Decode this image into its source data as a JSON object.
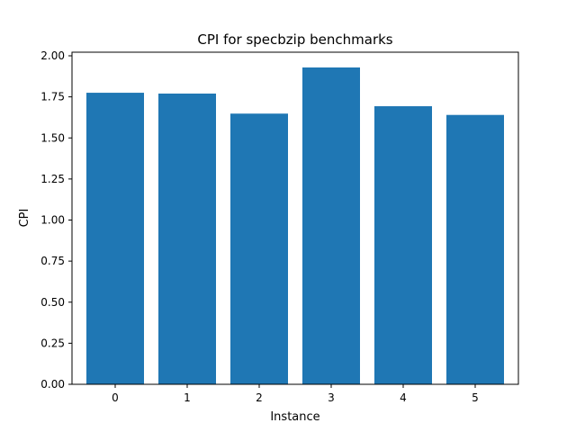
{
  "chart_data": {
    "type": "bar",
    "title": "CPI for specbzip benchmarks",
    "xlabel": "Instance",
    "ylabel": "CPI",
    "categories": [
      "0",
      "1",
      "2",
      "3",
      "4",
      "5"
    ],
    "values": [
      1.775,
      1.77,
      1.648,
      1.929,
      1.693,
      1.64
    ],
    "ylim": [
      0,
      2.0
    ],
    "yticks": [
      "0.00",
      "0.25",
      "0.50",
      "0.75",
      "1.00",
      "1.25",
      "1.50",
      "1.75",
      "2.00"
    ],
    "grid": false,
    "legend": "none",
    "bar_color": "#1f77b4"
  }
}
